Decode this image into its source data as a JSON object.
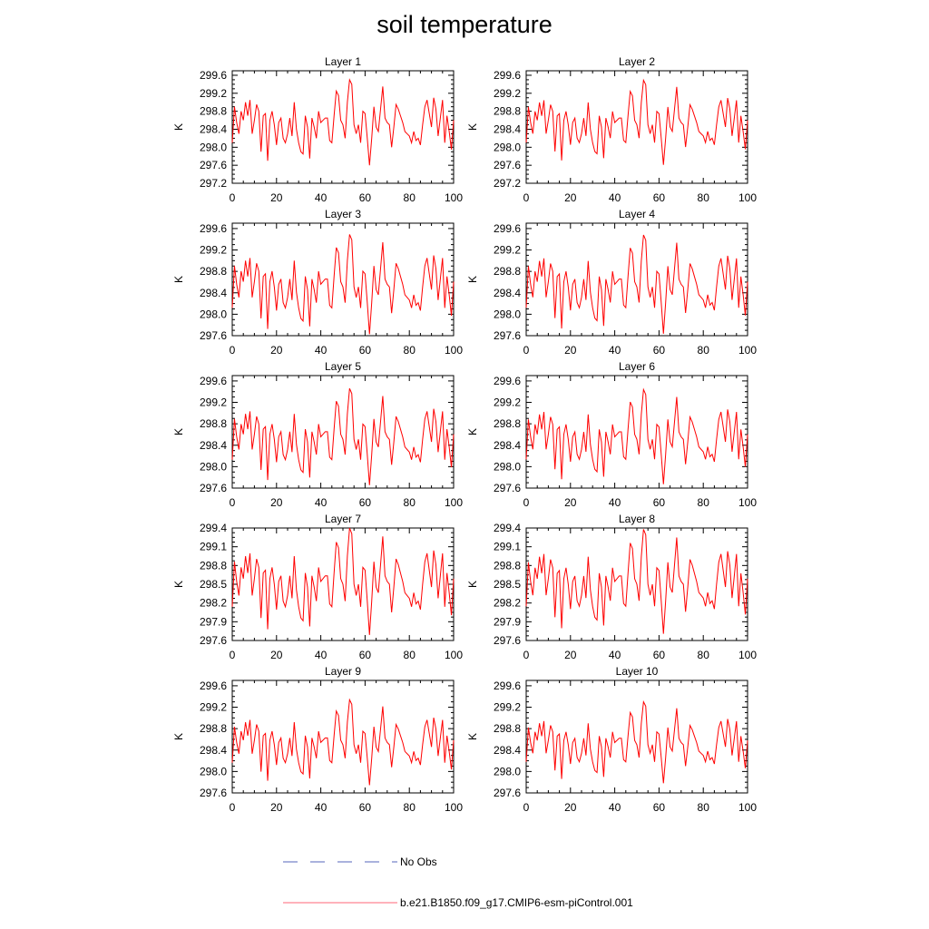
{
  "title": "soil temperature",
  "chart_data": {
    "type": "line",
    "title": "soil temperature",
    "xlim": [
      0,
      100
    ],
    "xticks": [
      0,
      20,
      40,
      60,
      80,
      100
    ],
    "ylabel": "K",
    "line_color": "#ff0000",
    "panels": [
      {
        "label": "Layer 1",
        "ylim": [
          297.2,
          299.7
        ],
        "yticks": [
          297.2,
          297.6,
          298.0,
          298.4,
          298.8,
          299.2,
          299.6
        ],
        "ytick_labels": [
          "297.2",
          "297.6",
          "298.0",
          "298.4",
          "298.8",
          "299.2",
          "299.6"
        ],
        "amp": 1.0,
        "offset": 0.0
      },
      {
        "label": "Layer 2",
        "ylim": [
          297.2,
          299.7
        ],
        "yticks": [
          297.2,
          297.6,
          298.0,
          298.4,
          298.8,
          299.2,
          299.6
        ],
        "ytick_labels": [
          "297.2",
          "297.6",
          "298.0",
          "298.4",
          "298.8",
          "299.2",
          "299.6"
        ],
        "amp": 0.99,
        "offset": 0.0
      },
      {
        "label": "Layer 3",
        "ylim": [
          297.6,
          299.7
        ],
        "yticks": [
          297.6,
          298.0,
          298.4,
          298.8,
          299.2,
          299.6
        ],
        "ytick_labels": [
          "297.6",
          "298.0",
          "298.4",
          "298.8",
          "299.2",
          "299.6"
        ],
        "amp": 0.98,
        "offset": 0.01
      },
      {
        "label": "Layer 4",
        "ylim": [
          297.6,
          299.7
        ],
        "yticks": [
          297.6,
          298.0,
          298.4,
          298.8,
          299.2,
          299.6
        ],
        "ytick_labels": [
          "297.6",
          "298.0",
          "298.4",
          "298.8",
          "299.2",
          "299.6"
        ],
        "amp": 0.97,
        "offset": 0.01
      },
      {
        "label": "Layer 5",
        "ylim": [
          297.6,
          299.7
        ],
        "yticks": [
          297.6,
          298.0,
          298.4,
          298.8,
          299.2,
          299.6
        ],
        "ytick_labels": [
          "297.6",
          "298.0",
          "298.4",
          "298.8",
          "299.2",
          "299.6"
        ],
        "amp": 0.95,
        "offset": 0.01
      },
      {
        "label": "Layer 6",
        "ylim": [
          297.6,
          299.7
        ],
        "yticks": [
          297.6,
          298.0,
          298.4,
          298.8,
          299.2,
          299.6
        ],
        "ytick_labels": [
          "297.6",
          "298.0",
          "298.4",
          "298.8",
          "299.2",
          "299.6"
        ],
        "amp": 0.93,
        "offset": 0.01
      },
      {
        "label": "Layer 7",
        "ylim": [
          297.6,
          299.4
        ],
        "yticks": [
          297.6,
          297.9,
          298.2,
          298.5,
          298.8,
          299.1,
          299.4
        ],
        "ytick_labels": [
          "297.6",
          "297.9",
          "298.2",
          "298.5",
          "298.8",
          "299.1",
          "299.4"
        ],
        "amp": 0.9,
        "offset": 0.0
      },
      {
        "label": "Layer 8",
        "ylim": [
          297.6,
          299.4
        ],
        "yticks": [
          297.6,
          297.9,
          298.2,
          298.5,
          298.8,
          299.1,
          299.4
        ],
        "ytick_labels": [
          "297.6",
          "297.9",
          "298.2",
          "298.5",
          "298.8",
          "299.1",
          "299.4"
        ],
        "amp": 0.88,
        "offset": 0.0
      },
      {
        "label": "Layer 9",
        "ylim": [
          297.6,
          299.7
        ],
        "yticks": [
          297.6,
          298.0,
          298.4,
          298.8,
          299.2,
          299.6
        ],
        "ytick_labels": [
          "297.6",
          "298.0",
          "298.4",
          "298.8",
          "299.2",
          "299.6"
        ],
        "amp": 0.84,
        "offset": 0.0
      },
      {
        "label": "Layer 10",
        "ylim": [
          297.6,
          299.7
        ],
        "yticks": [
          297.6,
          298.0,
          298.4,
          298.8,
          299.2,
          299.6
        ],
        "ytick_labels": [
          "297.6",
          "298.0",
          "298.4",
          "298.8",
          "299.2",
          "299.6"
        ],
        "amp": 0.8,
        "offset": 0.0
      }
    ],
    "x": [
      0,
      1,
      2,
      3,
      4,
      5,
      6,
      7,
      8,
      9,
      10,
      11,
      12,
      13,
      14,
      15,
      16,
      17,
      18,
      19,
      20,
      21,
      22,
      23,
      24,
      25,
      26,
      27,
      28,
      29,
      30,
      31,
      32,
      33,
      34,
      35,
      36,
      37,
      38,
      39,
      40,
      41,
      42,
      43,
      44,
      45,
      46,
      47,
      48,
      49,
      50,
      51,
      52,
      53,
      54,
      55,
      56,
      57,
      58,
      59,
      60,
      61,
      62,
      63,
      64,
      65,
      66,
      67,
      68,
      69,
      70,
      71,
      72,
      73,
      74,
      75,
      76,
      77,
      78,
      79,
      80,
      81,
      82,
      83,
      84,
      85,
      86,
      87,
      88,
      89,
      90,
      91,
      92,
      93,
      94,
      95,
      96,
      97,
      98,
      99,
      100
    ],
    "base_series": [
      298.1,
      298.9,
      298.55,
      298.3,
      298.8,
      298.6,
      299.0,
      298.7,
      299.05,
      298.3,
      298.6,
      298.95,
      298.8,
      297.9,
      298.7,
      298.75,
      297.7,
      298.6,
      298.8,
      298.5,
      298.05,
      298.55,
      298.65,
      298.2,
      298.1,
      298.3,
      298.65,
      298.25,
      299.0,
      298.4,
      298.1,
      297.9,
      297.85,
      298.7,
      298.45,
      297.75,
      298.65,
      298.45,
      298.2,
      298.8,
      298.55,
      298.6,
      298.65,
      298.65,
      298.15,
      298.1,
      298.7,
      299.25,
      299.15,
      298.6,
      298.5,
      298.2,
      299.0,
      299.5,
      299.4,
      298.5,
      298.3,
      298.5,
      298.1,
      298.8,
      298.75,
      298.2,
      297.6,
      298.2,
      298.9,
      298.45,
      298.35,
      298.85,
      299.35,
      298.65,
      298.55,
      298.5,
      298.0,
      298.45,
      298.95,
      298.85,
      298.7,
      298.55,
      298.35,
      298.3,
      298.25,
      298.1,
      298.35,
      298.15,
      298.2,
      298.05,
      298.5,
      298.9,
      299.05,
      298.75,
      298.45,
      299.1,
      298.85,
      298.25,
      298.65,
      299.05,
      298.1,
      298.7,
      298.35,
      297.95,
      298.6
    ],
    "legend": [
      {
        "label": "No Obs",
        "style": "dashed",
        "color": "#5566bb"
      },
      {
        "label": "b.e21.B1850.f09_g17.CMIP6-esm-piControl.001",
        "style": "solid",
        "color": "#ff6677"
      }
    ]
  }
}
